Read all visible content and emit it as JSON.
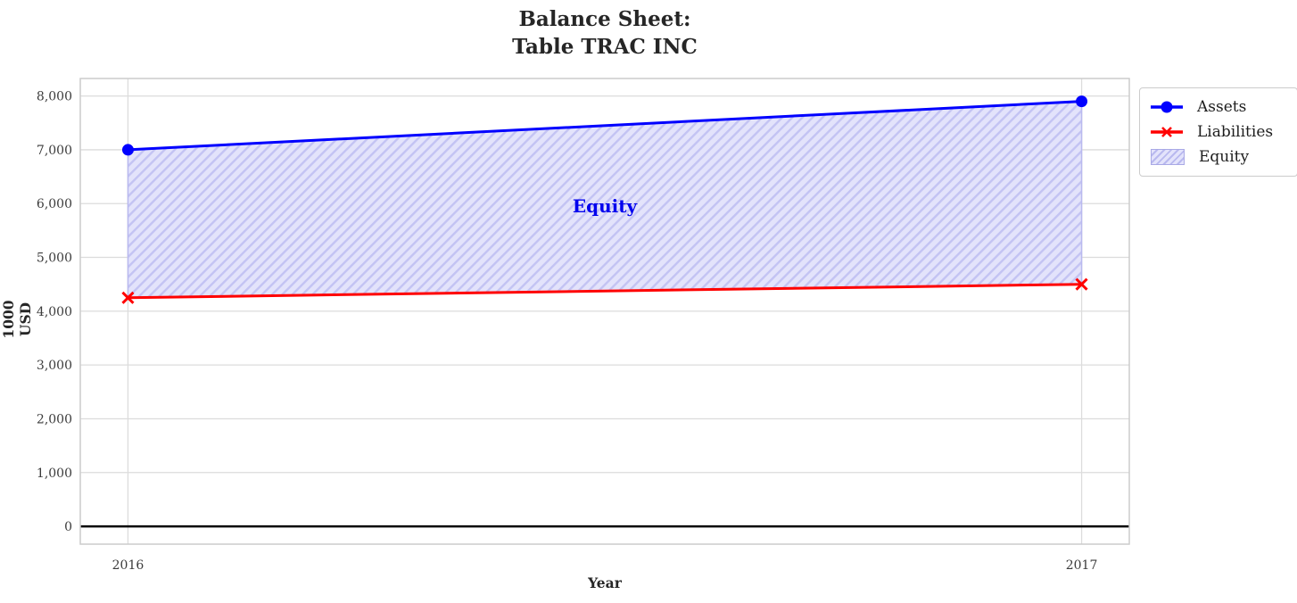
{
  "figure": {
    "title_line1": "Balance Sheet:",
    "title_line2": "Table TRAC INC",
    "xlabel": "Year",
    "ylabel": "1000 USD",
    "band_annotation": "Equity"
  },
  "legend": {
    "position": "outside-top-right",
    "items": [
      {
        "label": "Assets",
        "symbol": "line-circle-marker",
        "color": "#0000ff"
      },
      {
        "label": "Liabilities",
        "symbol": "line-x-marker",
        "color": "#ff0000"
      },
      {
        "label": "Equity",
        "symbol": "hatched-patch",
        "fill": "#e3e3fb",
        "hatch": "#b9b9ef"
      }
    ]
  },
  "colors": {
    "assets_line": "#0000ff",
    "liabilities_line": "#ff0000",
    "equity_fill": "#e3e3fb",
    "equity_hatch": "#c3c3f3",
    "equity_edge": "#b9b9ef",
    "annotation_text": "#0000ee",
    "zero_line": "#000000",
    "grid": "#dcdcdc",
    "title_text": "#262626"
  },
  "chart_data": {
    "type": "line",
    "title": "Balance Sheet: Table TRAC INC",
    "xlabel": "Year",
    "ylabel": "1000 USD",
    "x": [
      2016,
      2017
    ],
    "series": [
      {
        "name": "Assets",
        "values": [
          7000,
          7900
        ],
        "color": "#0000ff",
        "marker": "circle",
        "line_width": 3
      },
      {
        "name": "Liabilities",
        "values": [
          4250,
          4500
        ],
        "color": "#ff0000",
        "marker": "x",
        "line_width": 3
      }
    ],
    "band": {
      "name": "Equity",
      "upper_series": "Assets",
      "lower_series": "Liabilities",
      "upper": [
        7000,
        7900
      ],
      "lower": [
        4250,
        4500
      ],
      "values": [
        2750,
        3400
      ],
      "style": "diagonal-hatch"
    },
    "xlim": [
      2015.95,
      2017.05
    ],
    "ylim": [
      -330,
      8325
    ],
    "xticks": [
      2016,
      2017
    ],
    "xtick_labels": [
      "2016",
      "2017"
    ],
    "yticks": [
      0,
      1000,
      2000,
      3000,
      4000,
      5000,
      6000,
      7000,
      8000
    ],
    "ytick_labels": [
      "0",
      "1,000",
      "2,000",
      "3,000",
      "4,000",
      "5,000",
      "6,000",
      "7,000",
      "8,000"
    ],
    "grid": true,
    "zero_line": true,
    "legend_position": "outside-top-right"
  }
}
